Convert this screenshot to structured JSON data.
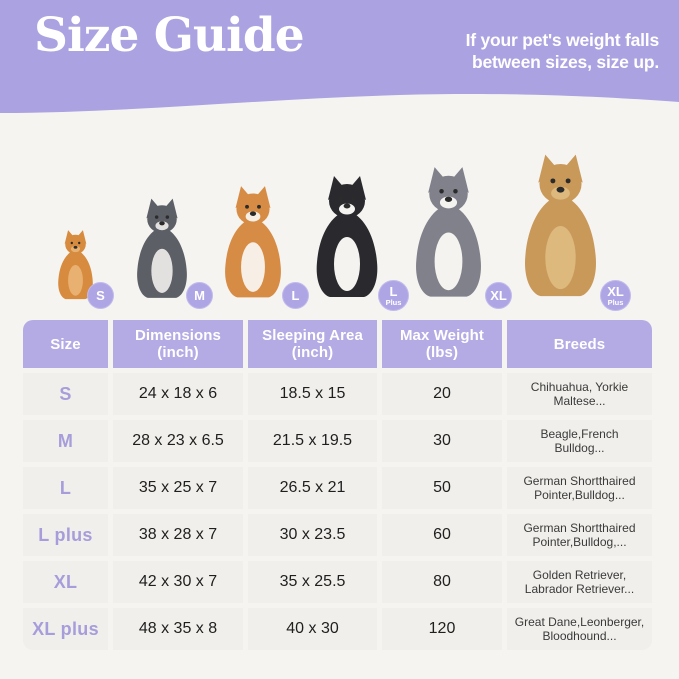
{
  "page": {
    "bg_color": "#F6F4F1"
  },
  "header": {
    "bg_color": "#ABA2E1",
    "title": "Size Guide",
    "note_line1": "If your pet's weight falls",
    "note_line2": "between sizes, size up."
  },
  "badge_color": "#AEA5E5",
  "dogs": [
    {
      "name": "pomeranian",
      "badge_line1": "S",
      "badge_line2": "",
      "main_color": "#D78B3F",
      "accent_color": "#E9B171"
    },
    {
      "name": "french-bulldog",
      "badge_line1": "M",
      "badge_line2": "",
      "main_color": "#5C5F66",
      "accent_color": "#E3E1DF"
    },
    {
      "name": "shiba-inu",
      "badge_line1": "L",
      "badge_line2": "",
      "main_color": "#D78C45",
      "accent_color": "#F7EFE6"
    },
    {
      "name": "border-collie",
      "badge_line1": "L",
      "badge_line2": "Plus",
      "main_color": "#2A2A2E",
      "accent_color": "#F5F3F0"
    },
    {
      "name": "australian-shepherd",
      "badge_line1": "XL",
      "badge_line2": "",
      "main_color": "#80818A",
      "accent_color": "#F5F3F0"
    },
    {
      "name": "golden-retriever",
      "badge_line1": "XL",
      "badge_line2": "Plus",
      "main_color": "#C9995A",
      "accent_color": "#DDB97E"
    }
  ],
  "table": {
    "header_bg": "#B4ABE4",
    "row_bg": "#F0EFEB",
    "size_text_color": "#A79DDA",
    "columns": [
      {
        "line1": "Size",
        "line2": ""
      },
      {
        "line1": "Dimensions",
        "line2": "(inch)"
      },
      {
        "line1": "Sleeping Area",
        "line2": "(inch)"
      },
      {
        "line1": "Max Weight",
        "line2": "(lbs)"
      },
      {
        "line1": "Breeds",
        "line2": ""
      }
    ],
    "rows": [
      {
        "size": "S",
        "dimensions": "24 x 18 x 6",
        "sleeping_area": "18.5 x 15",
        "max_weight": "20",
        "breeds_line1": "Chihuahua, Yorkie",
        "breeds_line2": "Maltese..."
      },
      {
        "size": "M",
        "dimensions": "28 x 23 x 6.5",
        "sleeping_area": "21.5 x 19.5",
        "max_weight": "30",
        "breeds_line1": "Beagle,French",
        "breeds_line2": "Bulldog..."
      },
      {
        "size": "L",
        "dimensions": "35 x 25 x 7",
        "sleeping_area": "26.5 x 21",
        "max_weight": "50",
        "breeds_line1": "German Shortthaired",
        "breeds_line2": "Pointer,Bulldog..."
      },
      {
        "size": "L plus",
        "dimensions": "38 x 28 x 7",
        "sleeping_area": "30 x 23.5",
        "max_weight": "60",
        "breeds_line1": "German Shortthaired",
        "breeds_line2": "Pointer,Bulldog,..."
      },
      {
        "size": "XL",
        "dimensions": "42 x 30 x 7",
        "sleeping_area": "35 x 25.5",
        "max_weight": "80",
        "breeds_line1": "Golden Retriever,",
        "breeds_line2": "Labrador Retriever..."
      },
      {
        "size": "XL plus",
        "dimensions": "48 x 35 x 8",
        "sleeping_area": "40 x 30",
        "max_weight": "120",
        "breeds_line1": "Great Dane,Leonberger,",
        "breeds_line2": "Bloodhound..."
      }
    ]
  }
}
